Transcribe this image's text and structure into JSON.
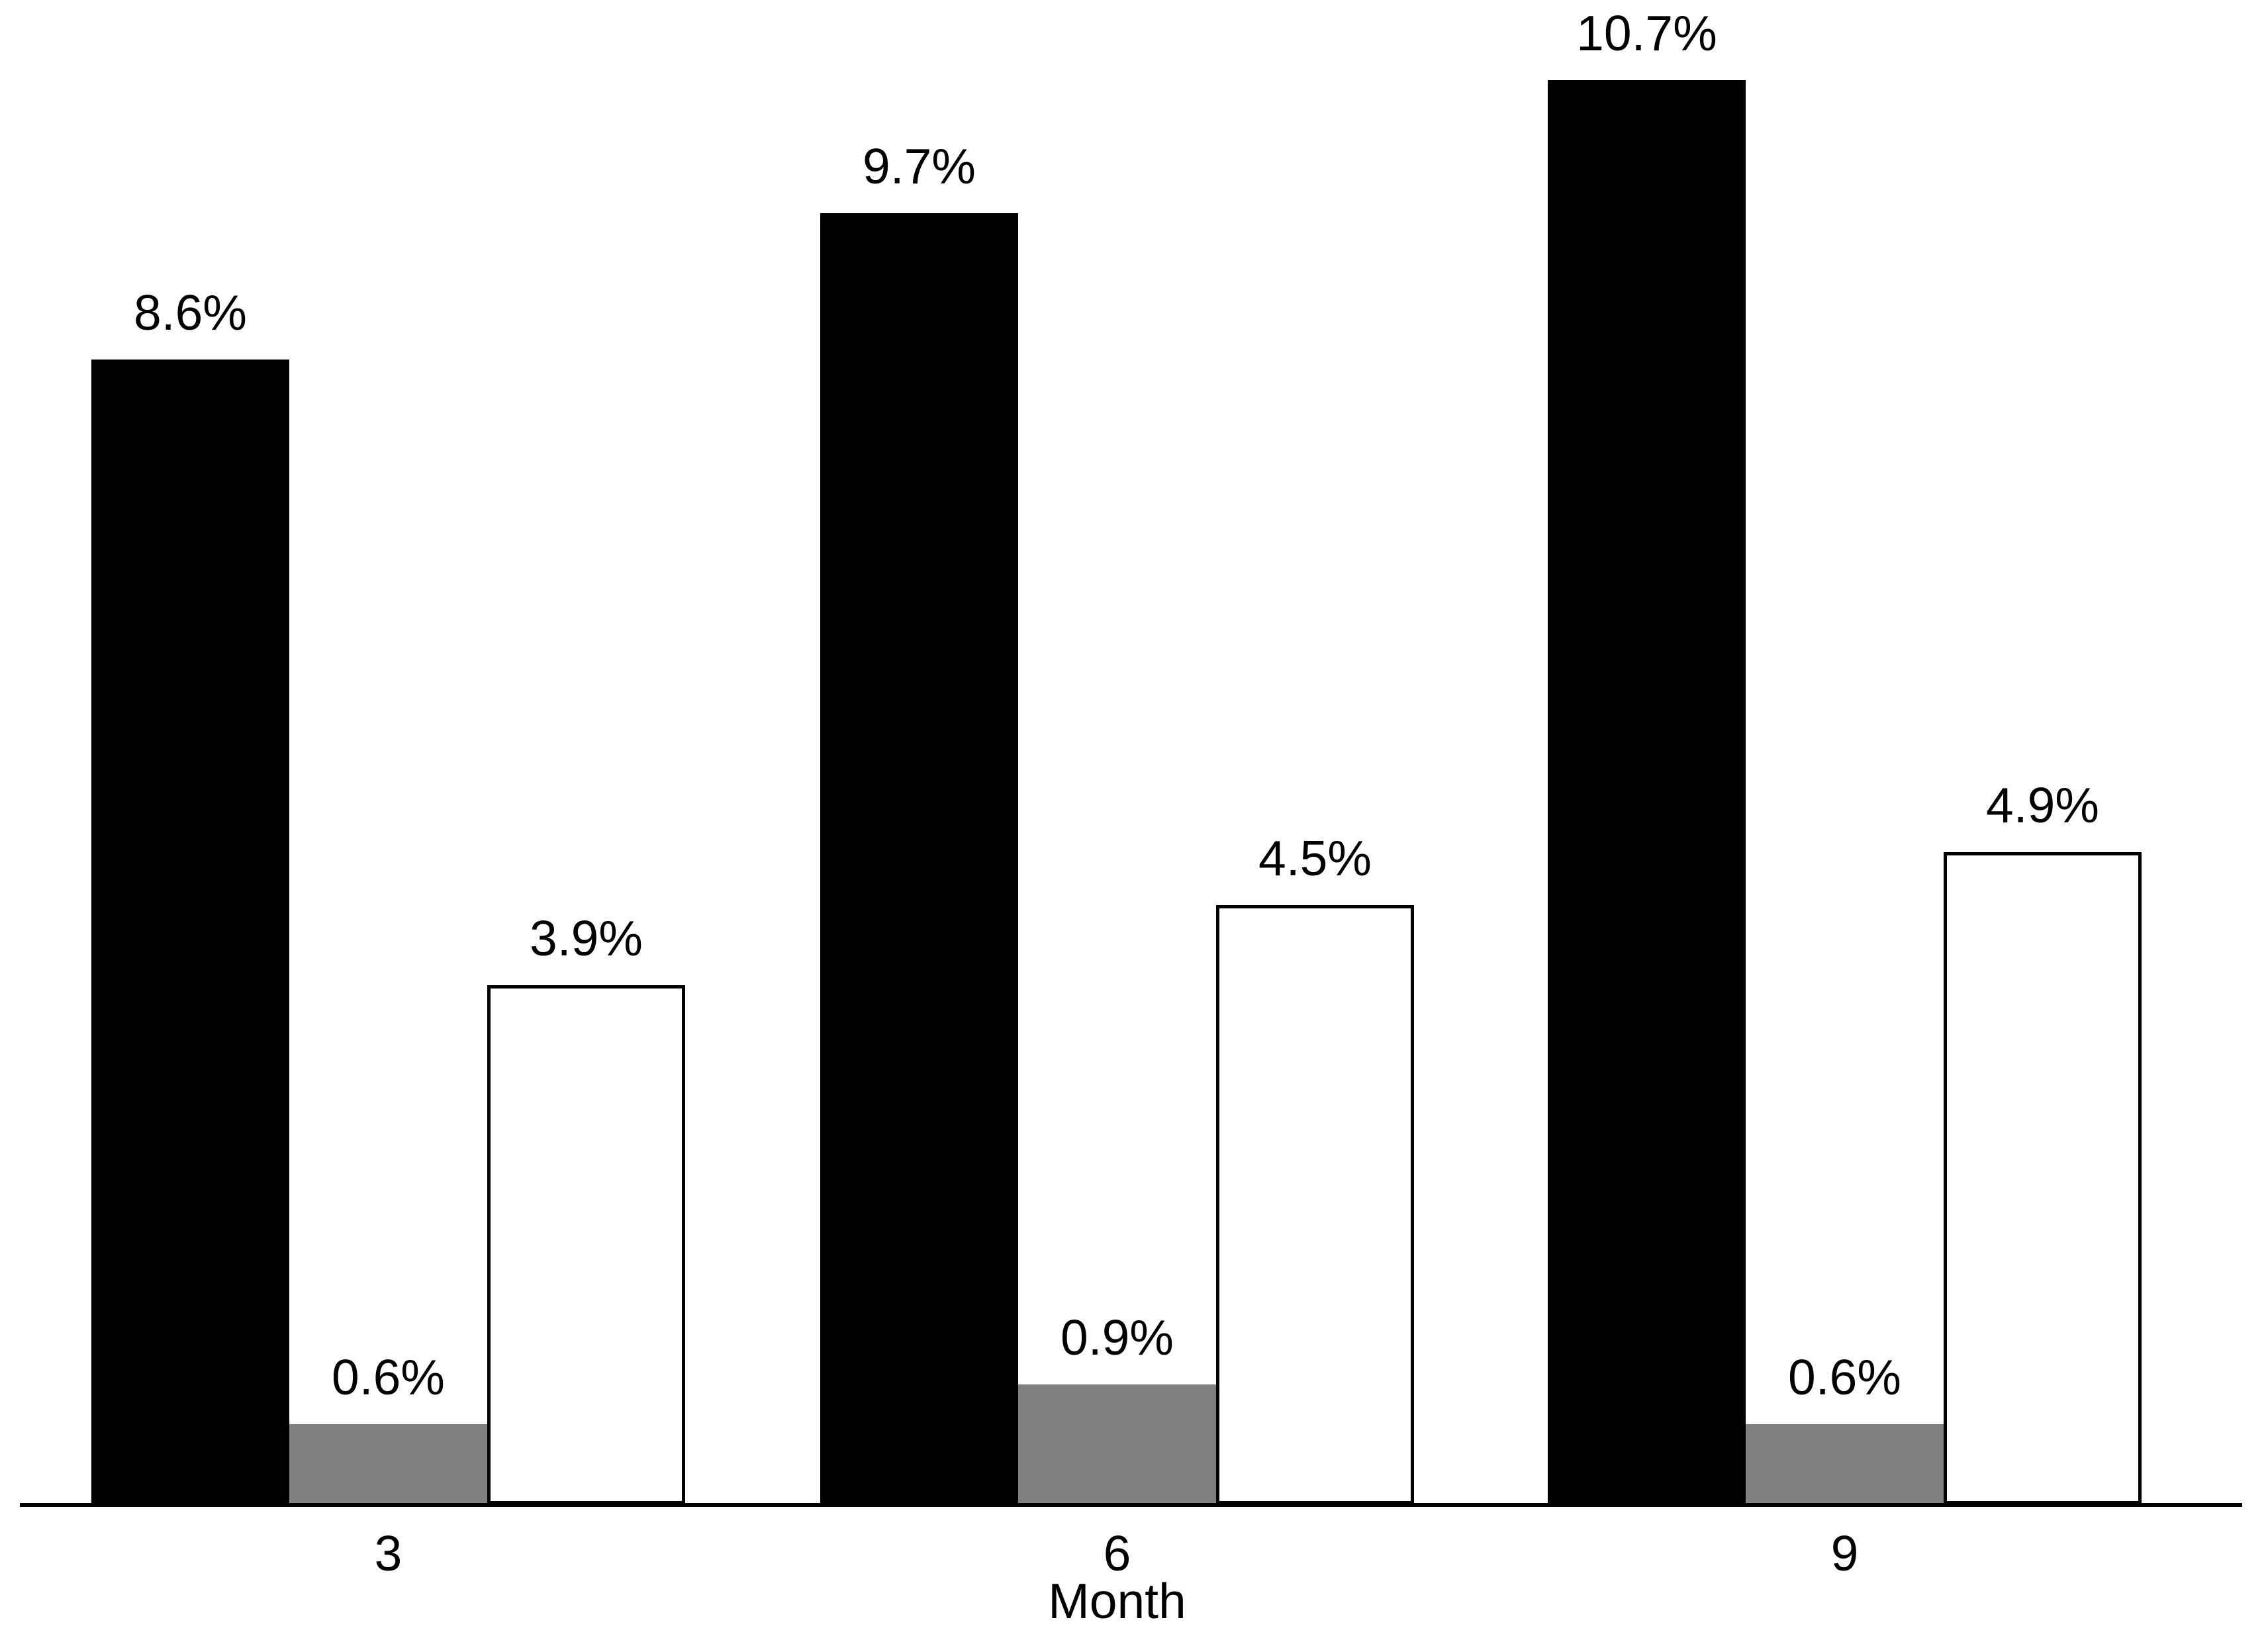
{
  "chart_data": {
    "type": "bar",
    "title": "",
    "xlabel": "Month",
    "ylabel": "",
    "categories": [
      "3",
      "6",
      "9"
    ],
    "series": [
      {
        "name": "black",
        "color": "#000000",
        "outlined": false,
        "values": [
          8.6,
          9.7,
          10.7
        ],
        "labels": [
          "8.6%",
          "9.7%",
          "10.7%"
        ]
      },
      {
        "name": "gray",
        "color": "#808080",
        "outlined": false,
        "values": [
          0.6,
          0.9,
          0.6
        ],
        "labels": [
          "0.6%",
          "0.9%",
          "0.6%"
        ]
      },
      {
        "name": "white",
        "color": "#ffffff",
        "outlined": true,
        "values": [
          3.9,
          4.5,
          4.9
        ],
        "labels": [
          "3.9%",
          "4.5%",
          "4.9%"
        ]
      }
    ],
    "ylim": [
      0,
      11.3
    ],
    "grid": false,
    "legend": false,
    "axis_color": "#000000",
    "background": "#ffffff"
  }
}
